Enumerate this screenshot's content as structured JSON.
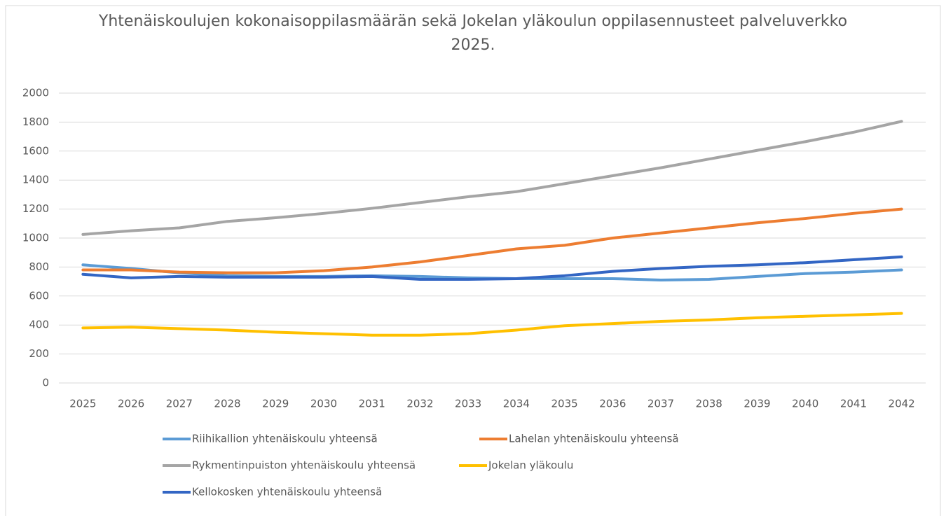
{
  "chart_data": {
    "type": "line",
    "title": "Yhtenäiskoulujen kokonaisoppilasmäärän sekä Jokelan yläkoulun oppilasennusteet palveluverkko 2025.",
    "categories": [
      "2025",
      "2026",
      "2027",
      "2028",
      "2029",
      "2030",
      "2031",
      "2032",
      "2033",
      "2034",
      "2035",
      "2036",
      "2037",
      "2038",
      "2039",
      "2040",
      "2041",
      "2042"
    ],
    "ylim": [
      0,
      2000
    ],
    "yticks": [
      0,
      200,
      400,
      600,
      800,
      1000,
      1200,
      1400,
      1600,
      1800,
      2000
    ],
    "grid": true,
    "series": [
      {
        "name": "Riihikallion yhtenäiskoulu yhteensä",
        "color": "#5b9bd5",
        "values": [
          815,
          790,
          760,
          740,
          735,
          735,
          740,
          735,
          725,
          720,
          720,
          720,
          710,
          715,
          735,
          755,
          765,
          780
        ]
      },
      {
        "name": "Lahelan yhtenäiskoulu yhteensä",
        "color": "#ed7d31",
        "values": [
          780,
          780,
          765,
          760,
          760,
          775,
          800,
          835,
          880,
          925,
          950,
          1000,
          1035,
          1070,
          1105,
          1135,
          1170,
          1200
        ]
      },
      {
        "name": "Rykmentinpuiston yhtenäiskoulu yhteensä",
        "color": "#a5a5a5",
        "values": [
          1025,
          1050,
          1070,
          1115,
          1140,
          1170,
          1205,
          1245,
          1285,
          1320,
          1375,
          1430,
          1485,
          1545,
          1605,
          1665,
          1730,
          1805
        ]
      },
      {
        "name": "Jokelan yläkoulu",
        "color": "#ffc000",
        "values": [
          380,
          385,
          375,
          365,
          350,
          340,
          330,
          330,
          340,
          365,
          395,
          410,
          425,
          435,
          450,
          460,
          470,
          480
        ]
      },
      {
        "name": "Kellokosken yhtenäiskoulu yhteensä",
        "color": "#3366c4",
        "values": [
          750,
          725,
          735,
          730,
          730,
          730,
          735,
          715,
          715,
          720,
          740,
          770,
          790,
          805,
          815,
          830,
          850,
          870
        ]
      }
    ]
  }
}
